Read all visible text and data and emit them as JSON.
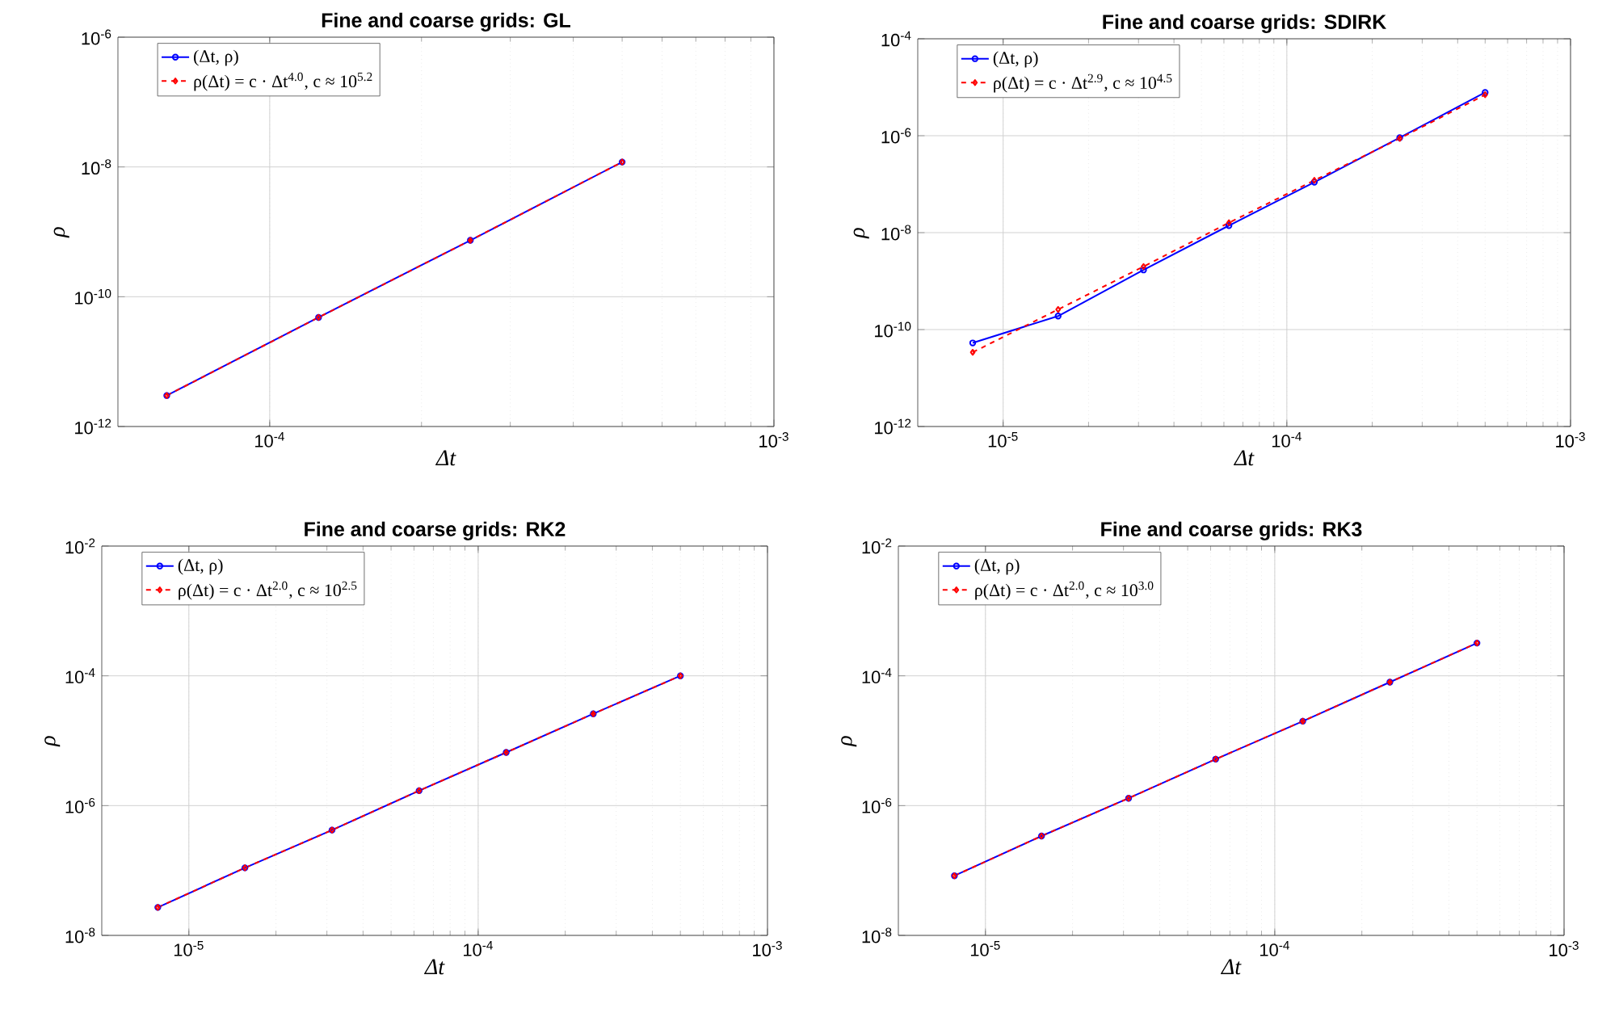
{
  "chart_data": [
    {
      "type": "line",
      "title": "Fine and coarse grids: GL",
      "xlabel": "Δt",
      "ylabel": "ρ",
      "log": "xy",
      "grid": true,
      "legend": "top left",
      "x": [
        6.25e-05,
        0.000125,
        0.00025,
        0.0005
      ],
      "xlim": [
        5e-05,
        0.001
      ],
      "xticks": [
        {
          "value": 0.0001,
          "label": "10$^{-4}$"
        },
        {
          "value": 0.001,
          "label": "10$^{-3}$"
        }
      ],
      "ylim": [
        1e-12,
        1e-06
      ],
      "yticks": [
        {
          "value": 1e-12,
          "label": "10$^{-12}$"
        },
        {
          "value": 1e-10,
          "label": "10$^{-10}$"
        },
        {
          "value": 1e-08,
          "label": "10$^{-8}$"
        },
        {
          "value": 1e-06,
          "label": "10$^{-6}$"
        }
      ],
      "series": [
        {
          "name": "(Δt, ρ)",
          "color": "#0000ff",
          "marker": "circle",
          "line_style": "solid",
          "values": [
            3e-12,
            4.8e-11,
            7.4e-10,
            1.19e-08
          ]
        },
        {
          "name": "ρ(Δt) = c · Δt$^{4.0}$,  c ≈ 10$^{5.2}$",
          "color": "#ff0000",
          "marker": "diamond",
          "line_style": "dashed",
          "values": [
            3e-12,
            4.8e-11,
            7.4e-10,
            1.19e-08
          ]
        }
      ]
    },
    {
      "type": "line",
      "title": "Fine and coarse grids: SDIRK",
      "xlabel": "Δt",
      "ylabel": "ρ",
      "log": "xy",
      "grid": true,
      "legend": "top left",
      "x": [
        7.8125e-06,
        1.5625e-05,
        3.125e-05,
        6.25e-05,
        0.000125,
        0.00025,
        0.0005
      ],
      "xlim": [
        5e-06,
        0.001
      ],
      "xticks": [
        {
          "value": 1e-05,
          "label": "10$^{-5}$"
        },
        {
          "value": 0.0001,
          "label": "10$^{-4}$"
        },
        {
          "value": 0.001,
          "label": "10$^{-3}$"
        }
      ],
      "ylim": [
        1e-12,
        0.0001
      ],
      "yticks": [
        {
          "value": 1e-12,
          "label": "10$^{-12}$"
        },
        {
          "value": 1e-10,
          "label": "10$^{-10}$"
        },
        {
          "value": 1e-08,
          "label": "10$^{-8}$"
        },
        {
          "value": 1e-06,
          "label": "10$^{-6}$"
        },
        {
          "value": 0.0001,
          "label": "10$^{-4}$"
        }
      ],
      "series": [
        {
          "name": "(Δt, ρ)",
          "color": "#0000ff",
          "marker": "circle",
          "line_style": "solid",
          "values": [
            5.3e-11,
            1.9e-10,
            1.7e-09,
            1.4e-08,
            1.1e-07,
            9.1e-07,
            7.8e-06
          ]
        },
        {
          "name": "ρ(Δt) = c · Δt$^{2.9}$,  c ≈ 10$^{4.5}$",
          "color": "#ff0000",
          "marker": "diamond",
          "line_style": "dashed",
          "values": [
            3.4e-11,
            2.6e-10,
            2e-09,
            1.6e-08,
            1.2e-07,
            8.8e-07,
            7e-06
          ]
        }
      ]
    },
    {
      "type": "line",
      "title": "Fine and coarse grids: RK2",
      "xlabel": "Δt",
      "ylabel": "ρ",
      "log": "xy",
      "grid": true,
      "legend": "top left",
      "x": [
        7.8125e-06,
        1.5625e-05,
        3.125e-05,
        6.25e-05,
        0.000125,
        0.00025,
        0.0005
      ],
      "xlim": [
        5e-06,
        0.001
      ],
      "xticks": [
        {
          "value": 1e-05,
          "label": "10$^{-5}$"
        },
        {
          "value": 0.0001,
          "label": "10$^{-4}$"
        },
        {
          "value": 0.001,
          "label": "10$^{-3}$"
        }
      ],
      "ylim": [
        1e-08,
        0.01
      ],
      "yticks": [
        {
          "value": 1e-08,
          "label": "10$^{-8}$"
        },
        {
          "value": 1e-06,
          "label": "10$^{-6}$"
        },
        {
          "value": 0.0001,
          "label": "10$^{-4}$"
        },
        {
          "value": 0.01,
          "label": "10$^{-2}$"
        }
      ],
      "series": [
        {
          "name": "(Δt, ρ)",
          "color": "#0000ff",
          "marker": "circle",
          "line_style": "solid",
          "values": [
            2.7e-08,
            1.1e-07,
            4.2e-07,
            1.7e-06,
            6.6e-06,
            2.6e-05,
            0.0001
          ]
        },
        {
          "name": "ρ(Δt) = c · Δt$^{2.0}$,  c ≈ 10$^{2.5}$",
          "color": "#ff0000",
          "marker": "diamond",
          "line_style": "dashed",
          "values": [
            2.7e-08,
            1.1e-07,
            4.2e-07,
            1.7e-06,
            6.6e-06,
            2.6e-05,
            0.0001
          ]
        }
      ]
    },
    {
      "type": "line",
      "title": "Fine and coarse grids: RK3",
      "xlabel": "Δt",
      "ylabel": "ρ",
      "log": "xy",
      "grid": true,
      "legend": "top left",
      "x": [
        7.8125e-06,
        1.5625e-05,
        3.125e-05,
        6.25e-05,
        0.000125,
        0.00025,
        0.0005
      ],
      "xlim": [
        5e-06,
        0.001
      ],
      "xticks": [
        {
          "value": 1e-05,
          "label": "10$^{-5}$"
        },
        {
          "value": 0.0001,
          "label": "10$^{-4}$"
        },
        {
          "value": 0.001,
          "label": "10$^{-3}$"
        }
      ],
      "ylim": [
        1e-08,
        0.01
      ],
      "yticks": [
        {
          "value": 1e-08,
          "label": "10$^{-8}$"
        },
        {
          "value": 1e-06,
          "label": "10$^{-6}$"
        },
        {
          "value": 0.0001,
          "label": "10$^{-4}$"
        },
        {
          "value": 0.01,
          "label": "10$^{-2}$"
        }
      ],
      "series": [
        {
          "name": "(Δt, ρ)",
          "color": "#0000ff",
          "marker": "circle",
          "line_style": "solid",
          "values": [
            8.3e-08,
            3.4e-07,
            1.3e-06,
            5.2e-06,
            2e-05,
            8e-05,
            0.00032
          ]
        },
        {
          "name": "ρ(Δt) = c · Δt$^{2.0}$,  c ≈ 10$^{3.0}$",
          "color": "#ff0000",
          "marker": "diamond",
          "line_style": "dashed",
          "values": [
            8.3e-08,
            3.4e-07,
            1.3e-06,
            5.2e-06,
            2e-05,
            8e-05,
            0.00032
          ]
        }
      ]
    }
  ]
}
